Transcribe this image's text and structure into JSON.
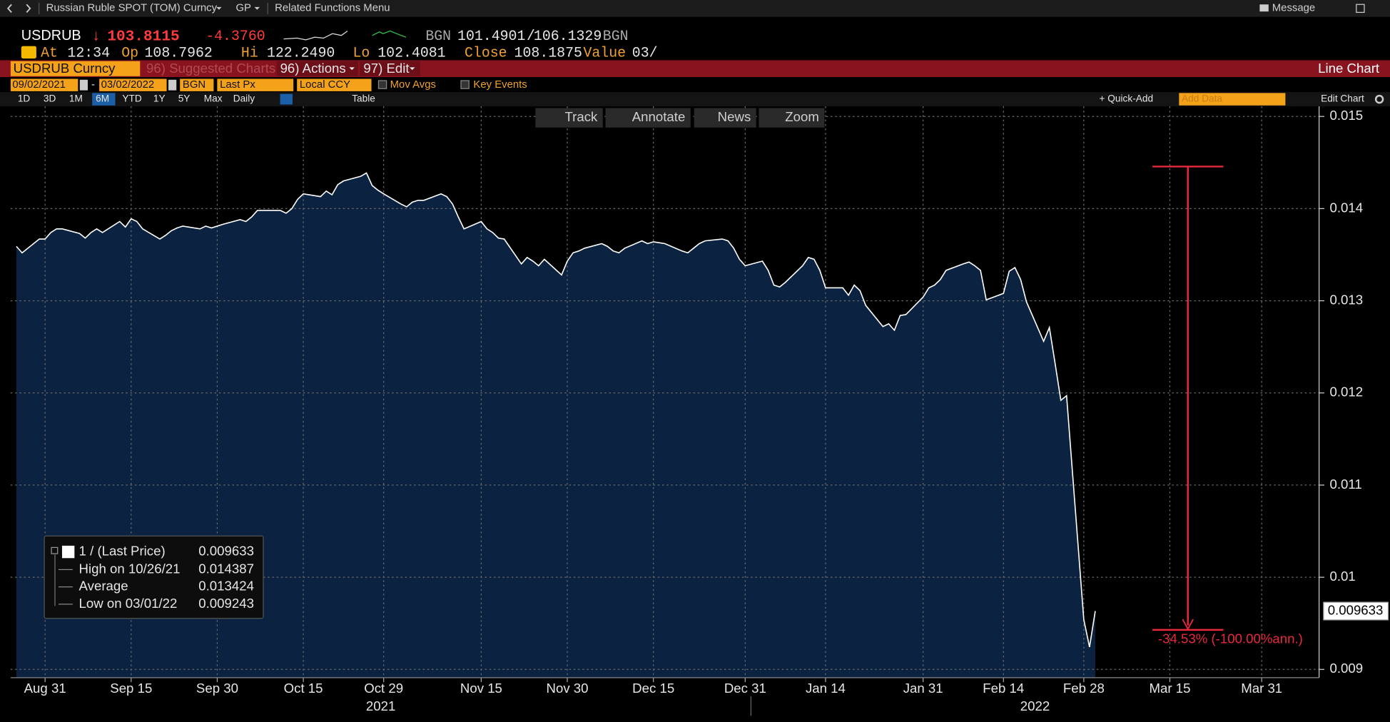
{
  "toolbar": {
    "security": "Russian Ruble SPOT (TOM) Curncy",
    "gp": "GP",
    "related": "Related Functions Menu",
    "message": "Message"
  },
  "ticker": {
    "symbol": "USDRUB",
    "arrow": "↓",
    "last": "103.8115",
    "change": "-4.3760",
    "source": "BGN",
    "bid": "101.4901",
    "separator": "/",
    "ask": "106.1329",
    "source2": "BGN"
  },
  "quote": {
    "at_label": "At",
    "at": "12:34",
    "open_label": "Op",
    "open": "108.7962",
    "high_label": "Hi",
    "high": "122.2490",
    "low_label": "Lo",
    "low": "102.4081",
    "close_label": "Close",
    "close": "108.1875",
    "value_label": "Value",
    "value": "03/"
  },
  "title_bar": {
    "security": "USDRUB Curncy",
    "suggested": "96) Suggested Charts",
    "actions": "96) Actions",
    "edit": "97) Edit",
    "chart_type": "Line Chart"
  },
  "settings": {
    "start": "09/02/2021",
    "dash": "-",
    "end": "03/02/2022",
    "source": "BGN",
    "field": "Last Px",
    "currency": "Local CCY",
    "mov_avgs": "Mov Avgs",
    "key_events": "Key Events"
  },
  "periods": [
    "1D",
    "3D",
    "1M",
    "6M",
    "YTD",
    "1Y",
    "5Y",
    "Max"
  ],
  "frequency": "Daily",
  "table": "Table",
  "quick_add": "+ Quick-Add",
  "add_data": "Add Data",
  "edit_chart": "Edit Chart",
  "chart_tools": [
    "Track",
    "Annotate",
    "News",
    "Zoom"
  ],
  "chart_data": {
    "type": "area",
    "x": [
      "2021-08-26",
      "2021-08-27",
      "2021-08-30",
      "2021-08-31",
      "2021-09-01",
      "2021-09-02",
      "2021-09-03",
      "2021-09-06",
      "2021-09-07",
      "2021-09-08",
      "2021-09-09",
      "2021-09-10",
      "2021-09-13",
      "2021-09-14",
      "2021-09-15",
      "2021-09-16",
      "2021-09-17",
      "2021-09-20",
      "2021-09-21",
      "2021-09-22",
      "2021-09-23",
      "2021-09-24",
      "2021-09-27",
      "2021-09-28",
      "2021-09-29",
      "2021-09-30",
      "2021-10-01",
      "2021-10-04",
      "2021-10-05",
      "2021-10-06",
      "2021-10-07",
      "2021-10-08",
      "2021-10-11",
      "2021-10-12",
      "2021-10-13",
      "2021-10-14",
      "2021-10-15",
      "2021-10-18",
      "2021-10-19",
      "2021-10-20",
      "2021-10-21",
      "2021-10-22",
      "2021-10-25",
      "2021-10-26",
      "2021-10-27",
      "2021-10-28",
      "2021-10-29",
      "2021-11-01",
      "2021-11-02",
      "2021-11-03",
      "2021-11-04",
      "2021-11-05",
      "2021-11-08",
      "2021-11-09",
      "2021-11-10",
      "2021-11-11",
      "2021-11-12",
      "2021-11-15",
      "2021-11-16",
      "2021-11-17",
      "2021-11-18",
      "2021-11-19",
      "2021-11-22",
      "2021-11-23",
      "2021-11-24",
      "2021-11-25",
      "2021-11-26",
      "2021-11-29",
      "2021-11-30",
      "2021-12-01",
      "2021-12-02",
      "2021-12-03",
      "2021-12-06",
      "2021-12-07",
      "2021-12-08",
      "2021-12-09",
      "2021-12-10",
      "2021-12-13",
      "2021-12-14",
      "2021-12-15",
      "2021-12-16",
      "2021-12-17",
      "2021-12-20",
      "2021-12-21",
      "2021-12-22",
      "2021-12-23",
      "2021-12-24",
      "2021-12-27",
      "2021-12-28",
      "2021-12-29",
      "2021-12-30",
      "2021-12-31",
      "2022-01-03",
      "2022-01-04",
      "2022-01-05",
      "2022-01-06",
      "2022-01-07",
      "2022-01-10",
      "2022-01-11",
      "2022-01-12",
      "2022-01-13",
      "2022-01-14",
      "2022-01-17",
      "2022-01-18",
      "2022-01-19",
      "2022-01-20",
      "2022-01-21",
      "2022-01-24",
      "2022-01-25",
      "2022-01-26",
      "2022-01-27",
      "2022-01-28",
      "2022-01-31",
      "2022-02-01",
      "2022-02-02",
      "2022-02-03",
      "2022-02-04",
      "2022-02-07",
      "2022-02-08",
      "2022-02-09",
      "2022-02-10",
      "2022-02-11",
      "2022-02-14",
      "2022-02-15",
      "2022-02-16",
      "2022-02-17",
      "2022-02-18",
      "2022-02-21",
      "2022-02-22",
      "2022-02-23",
      "2022-02-24",
      "2022-02-25",
      "2022-02-28",
      "2022-03-01",
      "2022-03-02"
    ],
    "series": [
      {
        "name": "1 / (Last Price)",
        "color": "#ffffff",
        "fill": "#0b2240",
        "values": [
          0.01359,
          0.01352,
          0.01367,
          0.01367,
          0.01374,
          0.01378,
          0.01378,
          0.01373,
          0.01368,
          0.01374,
          0.01378,
          0.01374,
          0.01386,
          0.0138,
          0.01389,
          0.01386,
          0.01378,
          0.01367,
          0.01371,
          0.01376,
          0.01379,
          0.01381,
          0.01378,
          0.01381,
          0.01379,
          0.01381,
          0.01383,
          0.01388,
          0.01386,
          0.01391,
          0.01398,
          0.01398,
          0.01398,
          0.01395,
          0.014,
          0.0141,
          0.01416,
          0.01413,
          0.01419,
          0.01415,
          0.01426,
          0.0143,
          0.01435,
          0.014387,
          0.01425,
          0.0142,
          0.01416,
          0.01405,
          0.01402,
          0.01407,
          0.01409,
          0.01409,
          0.01416,
          0.01413,
          0.01405,
          0.01391,
          0.01378,
          0.01386,
          0.01378,
          0.01374,
          0.01368,
          0.01367,
          0.0134,
          0.01347,
          0.01343,
          0.01338,
          0.01345,
          0.01328,
          0.01343,
          0.01352,
          0.01354,
          0.01357,
          0.01362,
          0.01359,
          0.01354,
          0.01352,
          0.01357,
          0.01365,
          0.01362,
          0.01364,
          0.01363,
          0.01362,
          0.01354,
          0.01352,
          0.01357,
          0.01362,
          0.01365,
          0.01367,
          0.01365,
          0.01357,
          0.01345,
          0.01338,
          0.01343,
          0.01333,
          0.01317,
          0.01315,
          0.0132,
          0.01338,
          0.01347,
          0.01345,
          0.01333,
          0.01314,
          0.01314,
          0.01306,
          0.01317,
          0.01311,
          0.01295,
          0.01272,
          0.01275,
          0.01268,
          0.01284,
          0.01285,
          0.01304,
          0.01314,
          0.01317,
          0.01323,
          0.01333,
          0.0134,
          0.01342,
          0.01338,
          0.01333,
          0.01301,
          0.01308,
          0.01332,
          0.01336,
          0.01323,
          0.01299,
          0.01256,
          0.01271,
          0.01232,
          0.01192,
          0.01197,
          0.00954,
          0.009243,
          0.009633
        ]
      }
    ],
    "xlim": [
      "2021-08-25",
      "2022-04-10"
    ],
    "xticks": [
      {
        "value": "2021-08-31",
        "label": "Aug 31"
      },
      {
        "value": "2021-09-15",
        "label": "Sep 15"
      },
      {
        "value": "2021-09-30",
        "label": "Sep 30"
      },
      {
        "value": "2021-10-15",
        "label": "Oct 15"
      },
      {
        "value": "2021-10-29",
        "label": "Oct 29"
      },
      {
        "value": "2021-11-15",
        "label": "Nov 15"
      },
      {
        "value": "2021-11-30",
        "label": "Nov 30"
      },
      {
        "value": "2021-12-15",
        "label": "Dec 15"
      },
      {
        "value": "2021-12-31",
        "label": "Dec 31"
      },
      {
        "value": "2022-01-14",
        "label": "Jan 14"
      },
      {
        "value": "2022-01-31",
        "label": "Jan 31"
      },
      {
        "value": "2022-02-14",
        "label": "Feb 14"
      },
      {
        "value": "2022-02-28",
        "label": "Feb 28"
      },
      {
        "value": "2022-03-15",
        "label": "Mar 15"
      },
      {
        "value": "2022-03-31",
        "label": "Mar 31"
      }
    ],
    "year_labels": [
      "2021",
      "2022"
    ],
    "ylim": [
      0.00891,
      0.01511
    ],
    "yticks": [
      0.009,
      0.01,
      0.011,
      0.012,
      0.013,
      0.014,
      0.015
    ],
    "grid": true,
    "stats": [
      {
        "label": "High on 10/26/21",
        "value": 0.014387
      },
      {
        "label": "Average",
        "value": 0.013424
      },
      {
        "label": "Low on 03/01/22",
        "value": 0.009243
      }
    ],
    "annotation": "-34.53% (-100.00%ann.)"
  }
}
